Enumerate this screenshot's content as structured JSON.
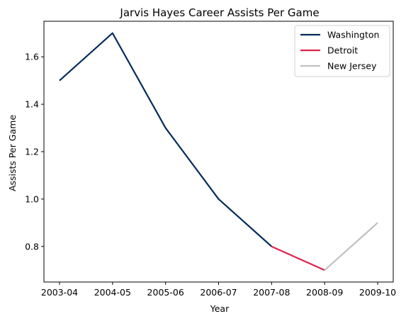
{
  "chart_data": {
    "type": "line",
    "title": "Jarvis Hayes Career Assists Per Game",
    "xlabel": "Year",
    "ylabel": "Assists Per Game",
    "categories": [
      "2003-04",
      "2004-05",
      "2005-06",
      "2006-07",
      "2007-08",
      "2008-09",
      "2009-10"
    ],
    "ylim": [
      0.65,
      1.75
    ],
    "yticks": [
      0.8,
      1.0,
      1.2,
      1.4,
      1.6
    ],
    "ytick_labels": [
      "0.8",
      "1.0",
      "1.2",
      "1.4",
      "1.6"
    ],
    "grid": false,
    "legend_position": "top-right",
    "series": [
      {
        "name": "Washington",
        "color": "#002B5C",
        "x": [
          "2003-04",
          "2004-05",
          "2005-06",
          "2006-07",
          "2007-08"
        ],
        "values": [
          1.5,
          1.7,
          1.3,
          1.0,
          0.8
        ]
      },
      {
        "name": "Detroit",
        "color": "#E0234E",
        "x": [
          "2007-08",
          "2008-09"
        ],
        "values": [
          0.8,
          0.7
        ]
      },
      {
        "name": "New Jersey",
        "color": "#C0C0C0",
        "x": [
          "2008-09",
          "2009-10"
        ],
        "values": [
          0.7,
          0.9
        ]
      }
    ]
  }
}
